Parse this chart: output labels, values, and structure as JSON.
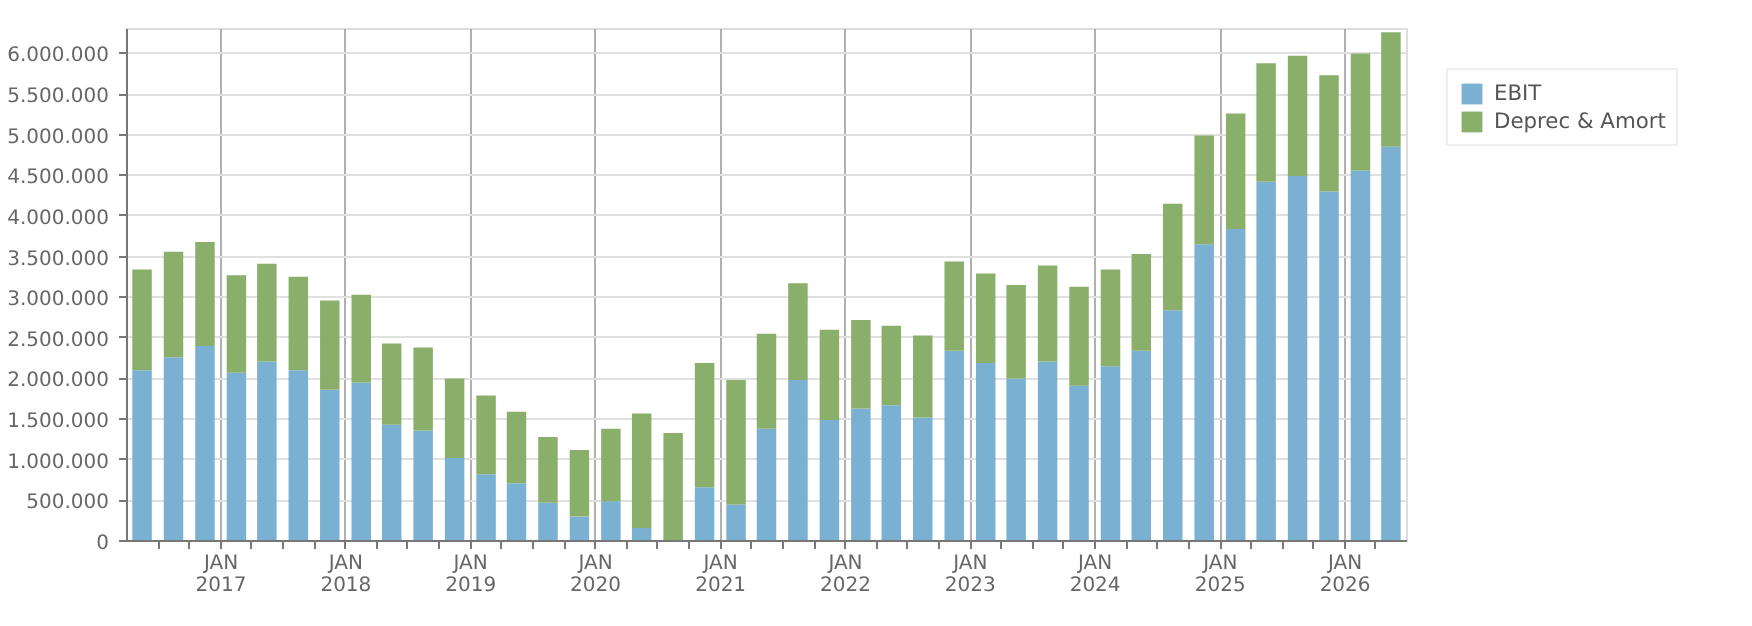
{
  "chart_data": {
    "type": "bar",
    "stacked": true,
    "x": [
      "2016-05-15",
      "2016-08-15",
      "2016-11-15",
      "2017-02-15",
      "2017-05-15",
      "2017-08-15",
      "2017-11-15",
      "2018-02-15",
      "2018-05-15",
      "2018-08-15",
      "2018-11-15",
      "2019-02-15",
      "2019-05-15",
      "2019-08-15",
      "2019-11-15",
      "2020-02-15",
      "2020-05-15",
      "2020-08-15",
      "2020-11-15",
      "2021-02-15",
      "2021-05-15",
      "2021-08-15",
      "2021-11-15",
      "2022-02-15",
      "2022-05-15",
      "2022-08-15",
      "2022-11-15",
      "2023-02-15",
      "2023-05-15",
      "2023-08-15",
      "2023-11-15",
      "2024-02-15",
      "2024-05-15",
      "2024-08-15",
      "2024-11-15",
      "2025-02-15",
      "2025-05-15",
      "2025-08-15",
      "2025-11-15",
      "2026-02-15",
      "2026-05-15"
    ],
    "series": [
      {
        "name": "EBIT",
        "color": "#7ab0d1",
        "values": [
          2100000,
          2260000,
          2400000,
          2070000,
          2210000,
          2100000,
          1860000,
          1950000,
          1430000,
          1360000,
          1020000,
          820000,
          710000,
          470000,
          300000,
          490000,
          160000,
          0,
          660000,
          450000,
          1380000,
          1980000,
          1490000,
          1630000,
          1670000,
          1520000,
          2340000,
          2190000,
          2000000,
          2210000,
          1910000,
          2150000,
          2340000,
          2840000,
          3650000,
          3840000,
          4420000,
          4490000,
          4300000,
          4560000,
          4850000
        ]
      },
      {
        "name": "Deprec & Amort",
        "color": "#8aaf6b",
        "values": [
          1240000,
          1300000,
          1280000,
          1200000,
          1200000,
          1150000,
          1100000,
          1080000,
          1000000,
          1020000,
          980000,
          970000,
          880000,
          810000,
          820000,
          890000,
          1410000,
          1330000,
          1530000,
          1530000,
          1170000,
          1190000,
          1110000,
          1090000,
          980000,
          1010000,
          1100000,
          1100000,
          1150000,
          1180000,
          1220000,
          1190000,
          1190000,
          1310000,
          1340000,
          1420000,
          1460000,
          1480000,
          1430000,
          1440000,
          1410000
        ]
      }
    ],
    "xlim": [
      "2016-04-01",
      "2026-07-01"
    ],
    "xticks": [
      {
        "value": "2016-07-01",
        "label": null
      },
      {
        "value": "2016-10-01",
        "label": null
      },
      {
        "value": "2017-01-01",
        "label": "JAN\n2017"
      },
      {
        "value": "2017-04-01",
        "label": null
      },
      {
        "value": "2017-07-01",
        "label": null
      },
      {
        "value": "2017-10-01",
        "label": null
      },
      {
        "value": "2018-01-01",
        "label": "JAN\n2018"
      },
      {
        "value": "2018-04-01",
        "label": null
      },
      {
        "value": "2018-07-01",
        "label": null
      },
      {
        "value": "2018-10-01",
        "label": null
      },
      {
        "value": "2019-01-01",
        "label": "JAN\n2019"
      },
      {
        "value": "2019-04-01",
        "label": null
      },
      {
        "value": "2019-07-01",
        "label": null
      },
      {
        "value": "2019-10-01",
        "label": null
      },
      {
        "value": "2020-01-01",
        "label": "JAN\n2020"
      },
      {
        "value": "2020-04-01",
        "label": null
      },
      {
        "value": "2020-07-01",
        "label": null
      },
      {
        "value": "2020-10-01",
        "label": null
      },
      {
        "value": "2021-01-01",
        "label": "JAN\n2021"
      },
      {
        "value": "2021-04-01",
        "label": null
      },
      {
        "value": "2021-07-01",
        "label": null
      },
      {
        "value": "2021-10-01",
        "label": null
      },
      {
        "value": "2022-01-01",
        "label": "JAN\n2022"
      },
      {
        "value": "2022-04-01",
        "label": null
      },
      {
        "value": "2022-07-01",
        "label": null
      },
      {
        "value": "2022-10-01",
        "label": null
      },
      {
        "value": "2023-01-01",
        "label": "JAN\n2023"
      },
      {
        "value": "2023-04-01",
        "label": null
      },
      {
        "value": "2023-07-01",
        "label": null
      },
      {
        "value": "2023-10-01",
        "label": null
      },
      {
        "value": "2024-01-01",
        "label": "JAN\n2024"
      },
      {
        "value": "2024-04-01",
        "label": null
      },
      {
        "value": "2024-07-01",
        "label": null
      },
      {
        "value": "2024-10-01",
        "label": null
      },
      {
        "value": "2025-01-01",
        "label": "JAN\n2025"
      },
      {
        "value": "2025-04-01",
        "label": null
      },
      {
        "value": "2025-07-01",
        "label": null
      },
      {
        "value": "2025-10-01",
        "label": null
      },
      {
        "value": "2026-01-01",
        "label": "JAN\n2026"
      },
      {
        "value": "2026-04-01",
        "label": null
      }
    ],
    "ylim": [
      0,
      6300000
    ],
    "yticks": [
      0,
      {
        "value": 500000,
        "label": "500.000"
      },
      {
        "value": 1000000,
        "label": "1.000.000"
      },
      {
        "value": 1500000,
        "label": "1.500.000"
      },
      {
        "value": 2000000,
        "label": "2.000.000"
      },
      {
        "value": 2500000,
        "label": "2.500.000"
      },
      {
        "value": 3000000,
        "label": "3.000.000"
      },
      {
        "value": 3500000,
        "label": "3.500.000"
      },
      {
        "value": 4000000,
        "label": "4.000.000"
      },
      {
        "value": 4500000,
        "label": "4.500.000"
      },
      {
        "value": 5000000,
        "label": "5.000.000"
      },
      {
        "value": 5500000,
        "label": "5.500.000"
      },
      {
        "value": 6000000,
        "label": "6.000.000"
      }
    ],
    "grid": true,
    "legend": "top right"
  }
}
